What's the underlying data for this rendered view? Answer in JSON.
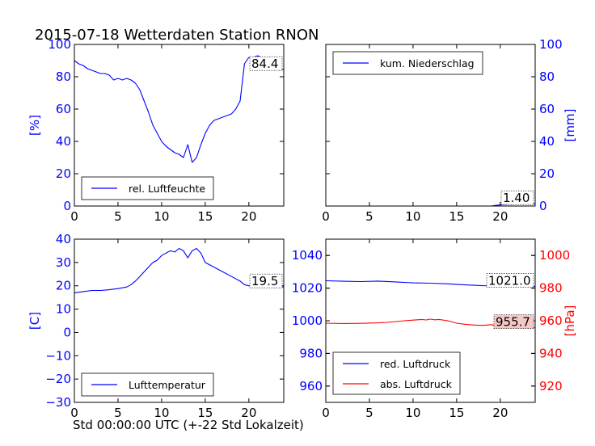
{
  "title": "2015-07-18 Wetterdaten Station RNON",
  "xlabel": "Std 00:00:00 UTC (+-22 Std Lokalzeit)",
  "colors": {
    "blue": "#0000ff",
    "red": "#ff0000",
    "annotation_red_bg": "#f5c8c8"
  },
  "chart_data": [
    {
      "id": "humidity",
      "type": "line",
      "ylabel": "[%]",
      "ylabel_color": "#0000ff",
      "ylabel_side": "left",
      "xlim": [
        0,
        24
      ],
      "ylim": [
        0,
        100
      ],
      "xticks": [
        0,
        5,
        10,
        15,
        20
      ],
      "yticks": [
        0,
        20,
        40,
        60,
        80,
        100
      ],
      "ytick_color": "#0000ff",
      "legend": {
        "placement": "lower-left",
        "entries": [
          "rel. Luftfeuchte"
        ]
      },
      "annotations": [
        {
          "text": "84.4",
          "series": 0,
          "background": "#ffffff"
        }
      ],
      "series": [
        {
          "name": "rel. Luftfeuchte",
          "color": "#0000ff",
          "x": [
            0,
            0.5,
            1,
            1.5,
            2,
            2.5,
            3,
            3.5,
            4,
            4.5,
            5,
            5.5,
            6,
            6.5,
            7,
            7.5,
            8,
            8.5,
            9,
            9.5,
            10,
            10.5,
            11,
            11.5,
            12,
            12.5,
            13,
            13.5,
            14,
            14.5,
            15,
            15.5,
            16,
            16.5,
            17,
            17.5,
            18,
            18.5,
            19,
            19.5,
            20,
            20.5,
            21,
            21.5,
            22,
            22.5,
            23,
            23.5,
            24
          ],
          "y": [
            90,
            88,
            87,
            85,
            84,
            83,
            82,
            82,
            81,
            78,
            79,
            78,
            79,
            78,
            76,
            72,
            65,
            58,
            50,
            45,
            40,
            37,
            35,
            33,
            32,
            30,
            38,
            27,
            30,
            38,
            45,
            50,
            53,
            54,
            55,
            56,
            57,
            60,
            65,
            88,
            92,
            92,
            93,
            92,
            91,
            89,
            86,
            85,
            84.4
          ]
        }
      ]
    },
    {
      "id": "precipitation",
      "type": "line",
      "ylabel": "[mm]",
      "ylabel_color": "#0000ff",
      "ylabel_side": "right",
      "xlim": [
        0,
        24
      ],
      "ylim": [
        0,
        100
      ],
      "xticks": [
        0,
        5,
        10,
        15,
        20
      ],
      "yticks": [
        0,
        20,
        40,
        60,
        80,
        100
      ],
      "ytick_color": "#0000ff",
      "legend": {
        "placement": "top-left",
        "entries": [
          "kum. Niederschlag"
        ]
      },
      "annotations": [
        {
          "text": "1.40",
          "series": 0,
          "background": "#ffffff"
        }
      ],
      "series": [
        {
          "name": "kum. Niederschlag",
          "color": "#0000ff",
          "x": [
            0,
            19,
            19.3,
            19.8,
            20.3,
            21,
            22,
            23,
            24
          ],
          "y": [
            0,
            0,
            0.3,
            0.6,
            0.9,
            1.1,
            1.3,
            1.4,
            1.4
          ]
        }
      ]
    },
    {
      "id": "temperature",
      "type": "line",
      "ylabel": "[C]",
      "ylabel_color": "#0000ff",
      "ylabel_side": "left",
      "xlim": [
        0,
        24
      ],
      "ylim": [
        -30,
        40
      ],
      "xticks": [
        0,
        5,
        10,
        15,
        20
      ],
      "yticks": [
        -30,
        -20,
        -10,
        0,
        10,
        20,
        30,
        40
      ],
      "ytick_color": "#0000ff",
      "legend": {
        "placement": "lower-left",
        "entries": [
          "Lufttemperatur"
        ]
      },
      "annotations": [
        {
          "text": "19.5",
          "series": 0,
          "background": "#ffffff"
        }
      ],
      "series": [
        {
          "name": "Lufttemperatur",
          "color": "#0000ff",
          "x": [
            0,
            1,
            2,
            3,
            4,
            5,
            6,
            6.5,
            7,
            7.5,
            8,
            8.5,
            9,
            9.5,
            10,
            10.5,
            11,
            11.5,
            12,
            12.5,
            13,
            13.5,
            14,
            14.5,
            15,
            15.5,
            16,
            17,
            18,
            19,
            19.5,
            20,
            21,
            22,
            23,
            24
          ],
          "y": [
            17,
            17.5,
            18,
            18,
            18.3,
            18.8,
            19.5,
            20.5,
            22,
            24,
            26,
            28,
            30,
            31,
            33,
            34,
            35,
            34.5,
            36,
            35,
            32,
            35,
            36,
            34,
            30,
            29,
            28,
            26,
            24,
            22,
            20.5,
            20,
            19.5,
            19.5,
            19.5,
            19.5
          ]
        }
      ]
    },
    {
      "id": "pressure",
      "type": "line",
      "ylabel": "[hPa]",
      "ylabel_color": "#ff0000",
      "ylabel_side": "right",
      "xlim": [
        0,
        24
      ],
      "ylim_left": [
        950,
        1050
      ],
      "ylim_right": [
        910,
        1010
      ],
      "xticks": [
        0,
        5,
        10,
        15,
        20
      ],
      "yticks_left": [
        960,
        980,
        1000,
        1020,
        1040
      ],
      "yticks_right": [
        920,
        940,
        960,
        980,
        1000
      ],
      "ytick_left_color": "#0000ff",
      "ytick_right_color": "#ff0000",
      "legend": {
        "placement": "lower-left",
        "entries": [
          "red. Luftdruck",
          "abs. Luftdruck"
        ]
      },
      "annotations": [
        {
          "text": "1021.0",
          "series": 0,
          "background": "#ffffff"
        },
        {
          "text": "955.7",
          "series": 1,
          "background": "#f5c8c8"
        }
      ],
      "series": [
        {
          "name": "red. Luftdruck",
          "color": "#0000ff",
          "axis": "left",
          "x": [
            0,
            2,
            4,
            6,
            8,
            10,
            12,
            14,
            16,
            18,
            20,
            22,
            24
          ],
          "y": [
            1024.5,
            1024.2,
            1024.0,
            1024.3,
            1023.8,
            1023.2,
            1023.0,
            1022.6,
            1022.0,
            1021.5,
            1021.3,
            1021.1,
            1021.0
          ]
        },
        {
          "name": "abs. Luftdruck",
          "color": "#ff0000",
          "axis": "right",
          "x": [
            0,
            2,
            4,
            6,
            7,
            8,
            9,
            10,
            11,
            11.5,
            12,
            12.5,
            13,
            14,
            15,
            16,
            17,
            18,
            19,
            19.5,
            20,
            21,
            22,
            23,
            24
          ],
          "y": [
            958.5,
            958.3,
            958.4,
            958.7,
            959,
            959.5,
            960,
            960.4,
            960.8,
            960.5,
            961,
            960.6,
            960.8,
            960,
            958.5,
            957.8,
            957.4,
            957.2,
            957.6,
            956.8,
            957.2,
            956.6,
            956.2,
            955.9,
            955.7
          ]
        }
      ]
    }
  ]
}
